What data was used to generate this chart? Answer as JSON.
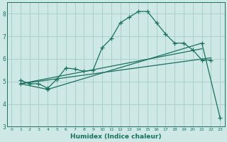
{
  "xlabel": "Humidex (Indice chaleur)",
  "bg_color": "#cde8e5",
  "grid_color": "#aad0cc",
  "line_color": "#1a7060",
  "xlim": [
    -0.5,
    23.5
  ],
  "ylim": [
    3,
    8.5
  ],
  "xticks": [
    0,
    1,
    2,
    3,
    4,
    5,
    6,
    7,
    8,
    9,
    10,
    11,
    12,
    13,
    14,
    15,
    16,
    17,
    18,
    19,
    20,
    21,
    22,
    23
  ],
  "yticks": [
    3,
    4,
    5,
    6,
    7,
    8
  ],
  "curve1_x": [
    1,
    2,
    3,
    4,
    5,
    6,
    7,
    8,
    9,
    10,
    11,
    12,
    13,
    14,
    15,
    16,
    17,
    18,
    19,
    20,
    21,
    22
  ],
  "curve1_y": [
    5.05,
    4.9,
    4.9,
    4.7,
    5.1,
    5.6,
    5.55,
    5.45,
    5.5,
    6.5,
    6.9,
    7.6,
    7.85,
    8.1,
    8.1,
    7.6,
    7.1,
    6.7,
    6.7,
    6.4,
    5.95,
    5.95
  ],
  "curve2_x": [
    1,
    4,
    21,
    23
  ],
  "curve2_y": [
    4.9,
    4.65,
    6.7,
    3.4
  ],
  "curve3_x": [
    1,
    21
  ],
  "curve3_y": [
    4.9,
    6.45
  ],
  "curve4_x": [
    1,
    22
  ],
  "curve4_y": [
    4.9,
    6.05
  ]
}
